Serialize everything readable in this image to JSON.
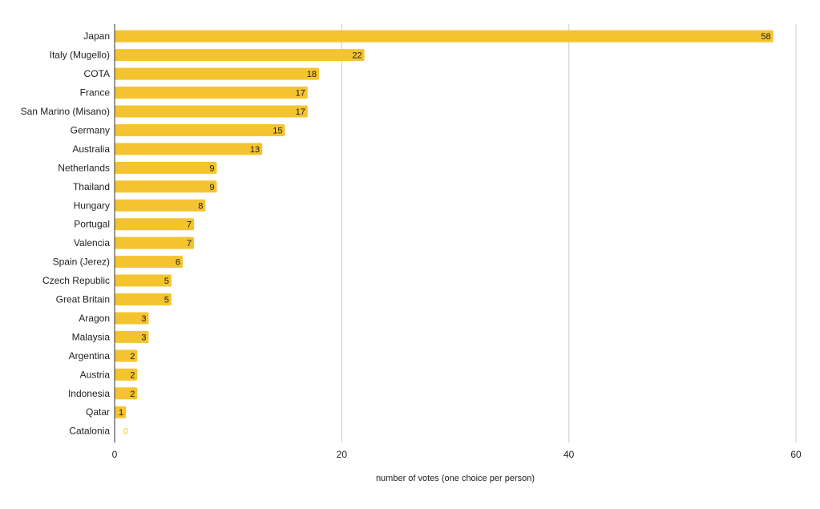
{
  "chart_data": {
    "type": "bar",
    "orientation": "horizontal",
    "title": "",
    "xlabel": "number of votes (one choice per person)",
    "ylabel": "",
    "xlim": [
      0,
      60
    ],
    "x_ticks": [
      0,
      20,
      40,
      60
    ],
    "grid": "vertical",
    "legend": "none",
    "bar_color": "#F4C430",
    "zero_label_color": "#F4C430",
    "categories": [
      "Japan",
      "Italy (Mugello)",
      "COTA",
      "France",
      "San Marino (Misano)",
      "Germany",
      "Australia",
      "Netherlands",
      "Thailand",
      "Hungary",
      "Portugal",
      "Valencia",
      "Spain (Jerez)",
      "Czech Republic",
      "Great Britain",
      "Aragon",
      "Malaysia",
      "Argentina",
      "Austria",
      "Indonesia",
      "Qatar",
      "Catalonia"
    ],
    "values": [
      58,
      22,
      18,
      17,
      17,
      15,
      13,
      9,
      9,
      8,
      7,
      7,
      6,
      5,
      5,
      3,
      3,
      2,
      2,
      2,
      1,
      0
    ]
  }
}
